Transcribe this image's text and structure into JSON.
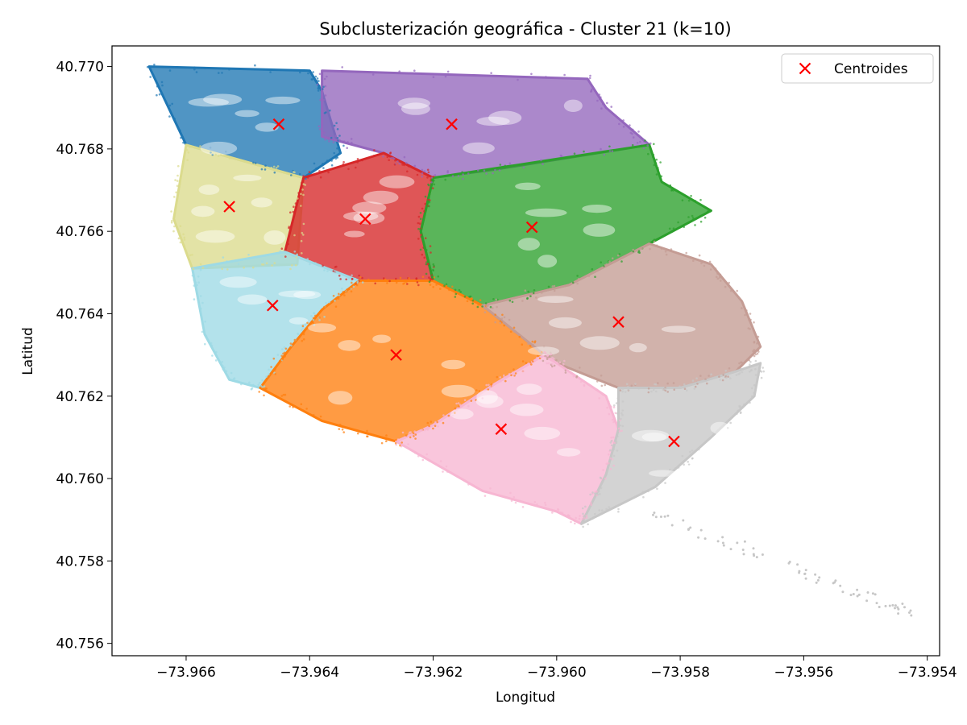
{
  "chart_data": {
    "type": "scatter",
    "title": "Subclusterización geográfica - Cluster 21 (k=10)",
    "xlabel": "Longitud",
    "ylabel": "Latitud",
    "xlim": [
      -73.9672,
      -73.9538
    ],
    "ylim": [
      40.7557,
      40.7705
    ],
    "xticks": [
      -73.966,
      -73.964,
      -73.962,
      -73.96,
      -73.958,
      -73.956,
      -73.954
    ],
    "xtick_labels": [
      "−73.966",
      "−73.964",
      "−73.962",
      "−73.960",
      "−73.958",
      "−73.956",
      "−73.954"
    ],
    "yticks": [
      40.756,
      40.758,
      40.76,
      40.762,
      40.764,
      40.766,
      40.768,
      40.77
    ],
    "ytick_labels": [
      "40.756",
      "40.758",
      "40.760",
      "40.762",
      "40.764",
      "40.766",
      "40.768",
      "40.770"
    ],
    "grid": false,
    "legend": {
      "position": "top-right",
      "entries": [
        "Centroides"
      ]
    },
    "clusters": [
      {
        "color": "#1f77b4",
        "polygon": [
          [
            -73.9666,
            40.77
          ],
          [
            -73.964,
            40.7699
          ],
          [
            -73.9638,
            40.7694
          ],
          [
            -73.9635,
            40.7679
          ],
          [
            -73.9641,
            40.7673
          ],
          [
            -73.966,
            40.7681
          ]
        ]
      },
      {
        "color": "#9467bd",
        "polygon": [
          [
            -73.9638,
            40.7699
          ],
          [
            -73.9595,
            40.7697
          ],
          [
            -73.9592,
            40.769
          ],
          [
            -73.9585,
            40.7681
          ],
          [
            -73.961,
            40.7675
          ],
          [
            -73.962,
            40.7673
          ],
          [
            -73.9628,
            40.7679
          ],
          [
            -73.9638,
            40.7683
          ]
        ]
      },
      {
        "color": "#dbdb8d",
        "polygon": [
          [
            -73.966,
            40.7681
          ],
          [
            -73.9641,
            40.7673
          ],
          [
            -73.9642,
            40.7652
          ],
          [
            -73.9659,
            40.7651
          ],
          [
            -73.9662,
            40.7663
          ]
        ]
      },
      {
        "color": "#d62728",
        "polygon": [
          [
            -73.9641,
            40.7673
          ],
          [
            -73.9628,
            40.7679
          ],
          [
            -73.962,
            40.7673
          ],
          [
            -73.9622,
            40.766
          ],
          [
            -73.962,
            40.7648
          ],
          [
            -73.9632,
            40.7648
          ],
          [
            -73.9644,
            40.7655
          ]
        ]
      },
      {
        "color": "#2ca02c",
        "polygon": [
          [
            -73.962,
            40.7673
          ],
          [
            -73.9585,
            40.7681
          ],
          [
            -73.9583,
            40.7672
          ],
          [
            -73.9575,
            40.7665
          ],
          [
            -73.9585,
            40.7657
          ],
          [
            -73.9598,
            40.7647
          ],
          [
            -73.9612,
            40.7642
          ],
          [
            -73.962,
            40.7648
          ],
          [
            -73.9622,
            40.766
          ]
        ]
      },
      {
        "color": "#9edae5",
        "polygon": [
          [
            -73.9659,
            40.7651
          ],
          [
            -73.9644,
            40.7655
          ],
          [
            -73.9632,
            40.7648
          ],
          [
            -73.9638,
            40.7641
          ],
          [
            -73.9643,
            40.7632
          ],
          [
            -73.9648,
            40.7622
          ],
          [
            -73.9653,
            40.7624
          ],
          [
            -73.9657,
            40.7635
          ]
        ]
      },
      {
        "color": "#ff7f0e",
        "polygon": [
          [
            -73.9632,
            40.7648
          ],
          [
            -73.962,
            40.7648
          ],
          [
            -73.9612,
            40.7642
          ],
          [
            -73.9602,
            40.763
          ],
          [
            -73.961,
            40.7623
          ],
          [
            -73.962,
            40.7613
          ],
          [
            -73.9626,
            40.7609
          ],
          [
            -73.9638,
            40.7614
          ],
          [
            -73.9648,
            40.7622
          ],
          [
            -73.9643,
            40.7632
          ],
          [
            -73.9638,
            40.7641
          ]
        ]
      },
      {
        "color": "#c49c94",
        "polygon": [
          [
            -73.9598,
            40.7647
          ],
          [
            -73.9585,
            40.7657
          ],
          [
            -73.9575,
            40.7652
          ],
          [
            -73.957,
            40.7643
          ],
          [
            -73.9567,
            40.7632
          ],
          [
            -73.9571,
            40.7626
          ],
          [
            -73.958,
            40.7622
          ],
          [
            -73.959,
            40.7622
          ],
          [
            -73.96,
            40.7628
          ],
          [
            -73.9602,
            40.763
          ],
          [
            -73.9612,
            40.7642
          ]
        ]
      },
      {
        "color": "#f7b6d2",
        "polygon": [
          [
            -73.9626,
            40.7609
          ],
          [
            -73.962,
            40.7613
          ],
          [
            -73.961,
            40.7623
          ],
          [
            -73.9602,
            40.763
          ],
          [
            -73.96,
            40.7628
          ],
          [
            -73.9592,
            40.762
          ],
          [
            -73.959,
            40.7612
          ],
          [
            -73.9592,
            40.7601
          ],
          [
            -73.9596,
            40.7589
          ],
          [
            -73.96,
            40.7592
          ],
          [
            -73.9612,
            40.7597
          ]
        ]
      },
      {
        "color": "#c7c7c7",
        "polygon": [
          [
            -73.959,
            40.7622
          ],
          [
            -73.958,
            40.7622
          ],
          [
            -73.9571,
            40.7626
          ],
          [
            -73.9567,
            40.7628
          ],
          [
            -73.9568,
            40.762
          ],
          [
            -73.9575,
            40.761
          ],
          [
            -73.9584,
            40.7598
          ],
          [
            -73.9596,
            40.7589
          ],
          [
            -73.9592,
            40.7601
          ],
          [
            -73.959,
            40.7612
          ]
        ]
      }
    ],
    "tail": {
      "color": "#c7c7c7",
      "from": [
        -73.9585,
        40.7592
      ],
      "to": [
        -73.9542,
        40.7567
      ]
    },
    "centroids": {
      "color": "#ff0000",
      "points": [
        [
          -73.9645,
          40.7686
        ],
        [
          -73.9617,
          40.7686
        ],
        [
          -73.9653,
          40.7666
        ],
        [
          -73.9631,
          40.7663
        ],
        [
          -73.9604,
          40.7661
        ],
        [
          -73.9646,
          40.7642
        ],
        [
          -73.9626,
          40.763
        ],
        [
          -73.959,
          40.7638
        ],
        [
          -73.9609,
          40.7612
        ],
        [
          -73.9581,
          40.7609
        ]
      ]
    }
  }
}
